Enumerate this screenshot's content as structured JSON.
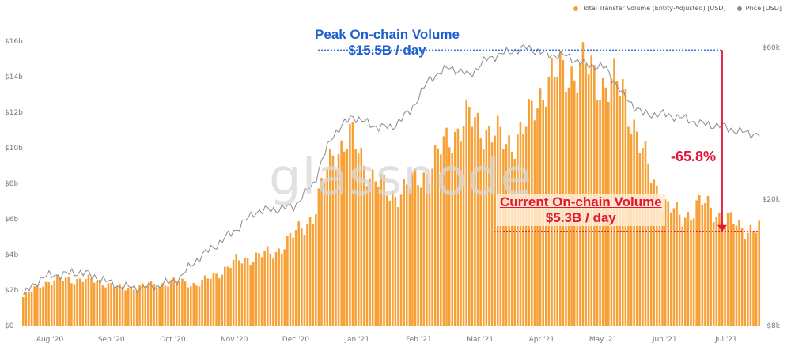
{
  "legend": {
    "volume_label": "Total Transfer Volume (Entity-Adjusted) [USD]",
    "price_label": "Price [USD]",
    "volume_color": "#f7a035",
    "price_color": "#8a8a8a"
  },
  "watermark": "glassnode",
  "annotations": {
    "peak_line1": "Peak On-chain Volume",
    "peak_line2": "$15.5B / day",
    "current_line1": "Current On-chain Volume",
    "current_line2": "$5.3B / day",
    "change": "-65.8%"
  },
  "chart_data": {
    "type": "bar",
    "x_ticks": [
      "Aug '20",
      "Sep '20",
      "Oct '20",
      "Nov '20",
      "Dec '20",
      "Jan '21",
      "Feb '21",
      "Mar '21",
      "Apr '21",
      "May '21",
      "Jun '21",
      "Jul '21"
    ],
    "y_left_ticks": [
      "$0",
      "$2b",
      "$4b",
      "$6b",
      "$8b",
      "$10b",
      "$12b",
      "$14b",
      "$16b"
    ],
    "y_right_ticks": [
      "$8k",
      "$20k",
      "$60k"
    ],
    "ylim_left": [
      0,
      16
    ],
    "y_right_scale": "log",
    "ylim_right": [
      8000,
      60000
    ],
    "weekly_volume_billions": [
      1.6,
      2.4,
      2.6,
      2.6,
      2.5,
      2.1,
      2.2,
      2.3,
      2.5,
      2.3,
      2.9,
      3.6,
      3.9,
      4.1,
      5.1,
      6.2,
      9.8,
      10.5,
      8.4,
      7.3,
      7.9,
      8.8,
      10.6,
      11.6,
      11.0,
      10.2,
      11.2,
      13.8,
      14.2,
      14.5,
      13.6,
      13.3,
      9.6,
      7.0,
      6.0,
      6.9,
      6.2,
      5.5,
      5.5
    ],
    "weekly_price_usd": [
      10000,
      11400,
      11600,
      11800,
      11200,
      10600,
      10500,
      10700,
      11200,
      13000,
      14400,
      16100,
      18300,
      18600,
      19000,
      22500,
      32000,
      36500,
      34000,
      33500,
      38000,
      48000,
      52000,
      49000,
      55500,
      58000,
      60000,
      57000,
      56500,
      53000,
      52000,
      42000,
      37000,
      37000,
      36000,
      34500,
      34000,
      32500,
      32000
    ],
    "peak_volume_billions": 15.5,
    "current_volume_billions": 5.3,
    "grid": false,
    "legend_position": "top-right"
  }
}
